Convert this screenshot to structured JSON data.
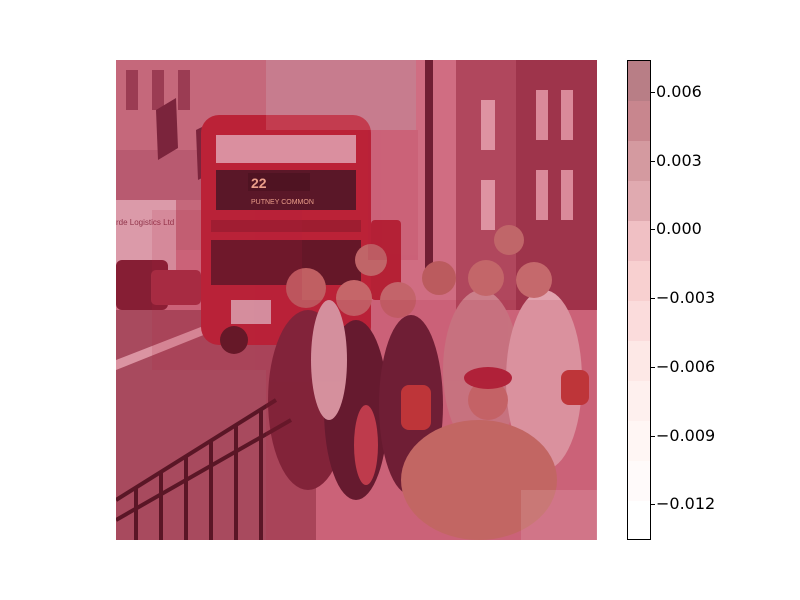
{
  "image": {
    "description_icon": "photo-icon",
    "overlay_color": "#c0284a",
    "bus_sign_number": "22",
    "bus_sign_destination": "PUTNEY COMMON",
    "truck_text": "rde Logistics Ltd"
  },
  "colorbar": {
    "ticks": [
      "0.006",
      "0.003",
      "0.000",
      "−0.003",
      "−0.006",
      "−0.009",
      "−0.012"
    ],
    "colors_top_to_bottom": [
      "#b87e86",
      "#c8868e",
      "#d49aa0",
      "#e0aab0",
      "#f0c0c4",
      "#f8d0d0",
      "#fbdcdc",
      "#fde8e6",
      "#fef0ee",
      "#fff6f4",
      "#fffafa",
      "#ffffff"
    ]
  }
}
